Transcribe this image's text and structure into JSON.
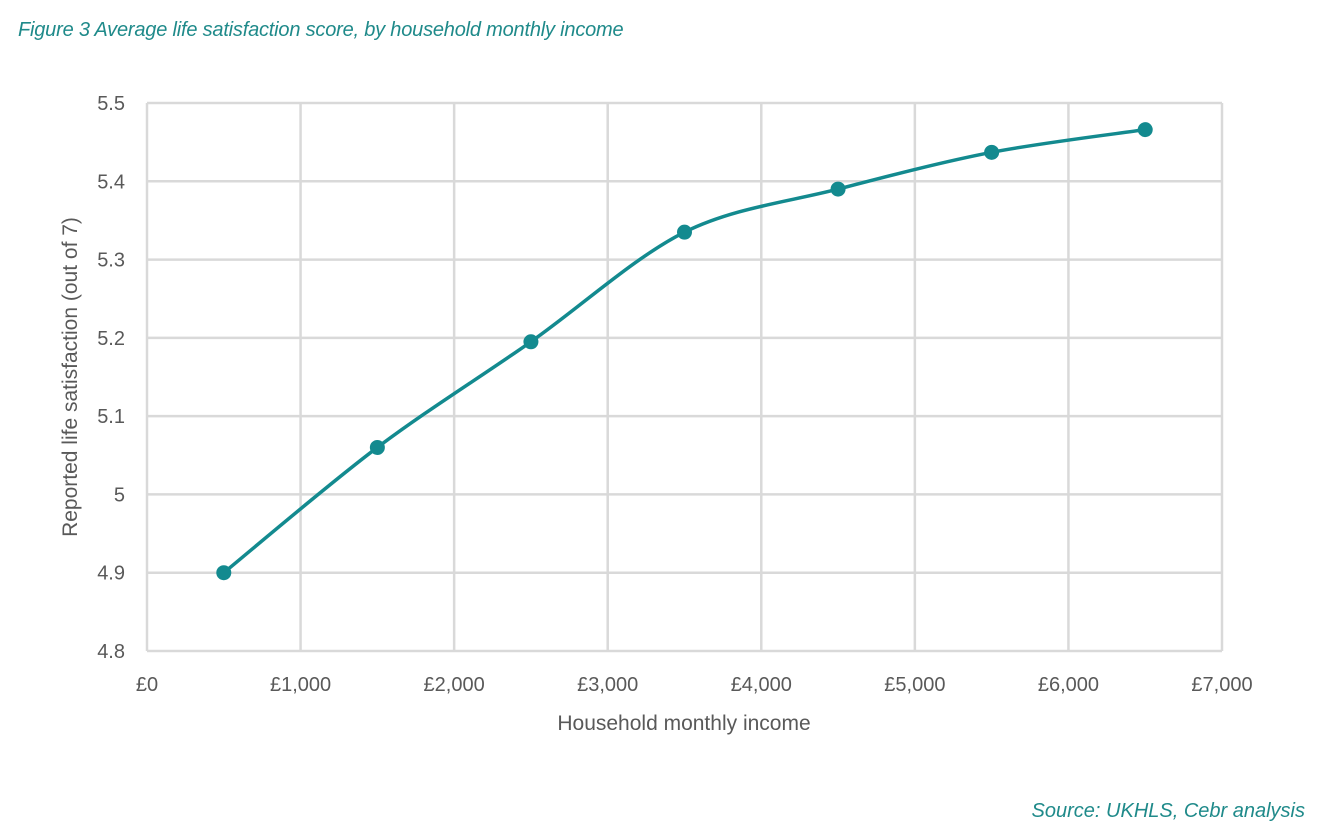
{
  "figure": {
    "title": "Figure 3 Average life satisfaction score, by household monthly income",
    "source": "Source: UKHLS, Cebr analysis",
    "accent_color": "#138a8f",
    "grid_color": "#d9d9d9"
  },
  "chart_data": {
    "type": "line",
    "title": "Figure 3 Average life satisfaction score, by household monthly income",
    "xlabel": "Household monthly income",
    "ylabel": "Reported life satisfaction (out of 7)",
    "xlim": [
      0,
      7000
    ],
    "ylim": [
      4.8,
      5.5
    ],
    "x_ticks": [
      0,
      1000,
      2000,
      3000,
      4000,
      5000,
      6000,
      7000
    ],
    "x_tick_labels": [
      "£0",
      "£1,000",
      "£2,000",
      "£3,000",
      "£4,000",
      "£5,000",
      "£6,000",
      "£7,000"
    ],
    "y_ticks": [
      4.8,
      4.9,
      5,
      5.1,
      5.2,
      5.3,
      5.4,
      5.5
    ],
    "y_tick_labels": [
      "4.8",
      "4.9",
      "5",
      "5.1",
      "5.2",
      "5.3",
      "5.4",
      "5.5"
    ],
    "grid": true,
    "legend": null,
    "smoothed": true,
    "markers": true,
    "series": [
      {
        "name": "Average life satisfaction",
        "color": "#138a8f",
        "x": [
          500,
          1500,
          2500,
          3500,
          4500,
          5500,
          6500
        ],
        "values": [
          4.9,
          5.06,
          5.195,
          5.335,
          5.39,
          5.437,
          5.466
        ]
      }
    ]
  }
}
